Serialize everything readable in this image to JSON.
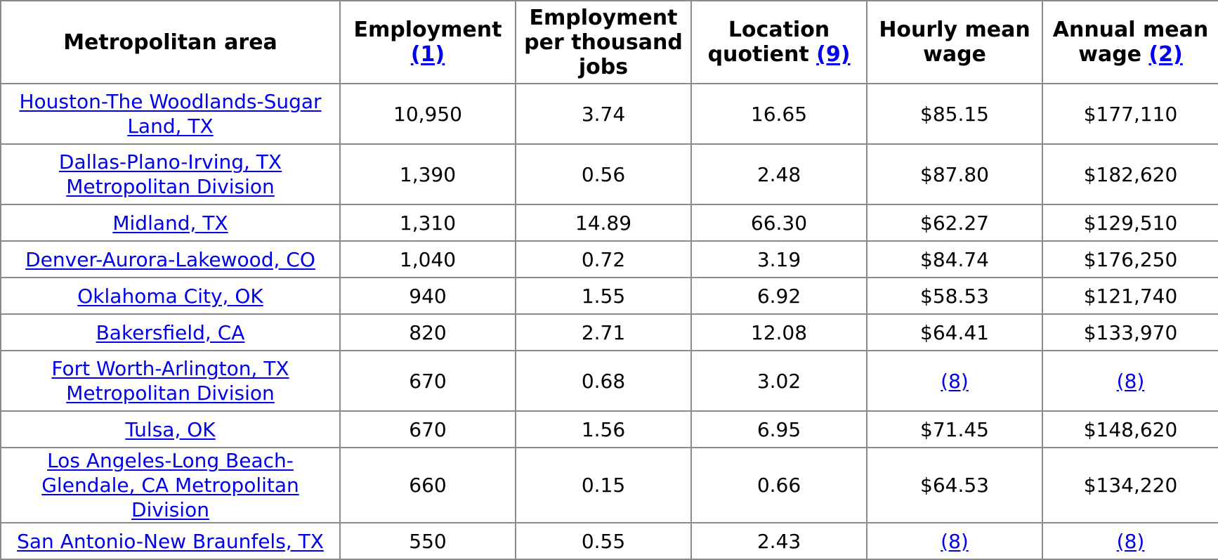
{
  "columns": [
    {
      "title": "Metropolitan area",
      "note": ""
    },
    {
      "title": "Employment",
      "note": "(1)"
    },
    {
      "title": "Employment per thousand jobs",
      "note": ""
    },
    {
      "title": "Location quotient",
      "note": "(9)"
    },
    {
      "title": "Hourly mean wage",
      "note": ""
    },
    {
      "title": "Annual mean wage",
      "note": "(2)"
    }
  ],
  "rows": [
    {
      "area": "Houston-The Woodlands-Sugar Land, TX",
      "employment": "10,950",
      "per_thousand": "3.74",
      "lq": "16.65",
      "hourly": "$85.15",
      "annual": "$177,110"
    },
    {
      "area": "Dallas-Plano-Irving, TX Metropolitan Division",
      "employment": "1,390",
      "per_thousand": "0.56",
      "lq": "2.48",
      "hourly": "$87.80",
      "annual": "$182,620"
    },
    {
      "area": "Midland, TX",
      "employment": "1,310",
      "per_thousand": "14.89",
      "lq": "66.30",
      "hourly": "$62.27",
      "annual": "$129,510"
    },
    {
      "area": "Denver-Aurora-Lakewood, CO",
      "employment": "1,040",
      "per_thousand": "0.72",
      "lq": "3.19",
      "hourly": "$84.74",
      "annual": "$176,250"
    },
    {
      "area": "Oklahoma City, OK",
      "employment": "940",
      "per_thousand": "1.55",
      "lq": "6.92",
      "hourly": "$58.53",
      "annual": "$121,740"
    },
    {
      "area": "Bakersfield, CA",
      "employment": "820",
      "per_thousand": "2.71",
      "lq": "12.08",
      "hourly": "$64.41",
      "annual": "$133,970"
    },
    {
      "area": "Fort Worth-Arlington, TX Metropolitan Division",
      "employment": "670",
      "per_thousand": "0.68",
      "lq": "3.02",
      "hourly": "(8)",
      "annual": "(8)"
    },
    {
      "area": "Tulsa, OK",
      "employment": "670",
      "per_thousand": "1.56",
      "lq": "6.95",
      "hourly": "$71.45",
      "annual": "$148,620"
    },
    {
      "area": "Los Angeles-Long Beach-Glendale, CA Metropolitan Division",
      "employment": "660",
      "per_thousand": "0.15",
      "lq": "0.66",
      "hourly": "$64.53",
      "annual": "$134,220"
    },
    {
      "area": "San Antonio-New Braunfels, TX",
      "employment": "550",
      "per_thousand": "0.55",
      "lq": "2.43",
      "hourly": "(8)",
      "annual": "(8)"
    }
  ]
}
